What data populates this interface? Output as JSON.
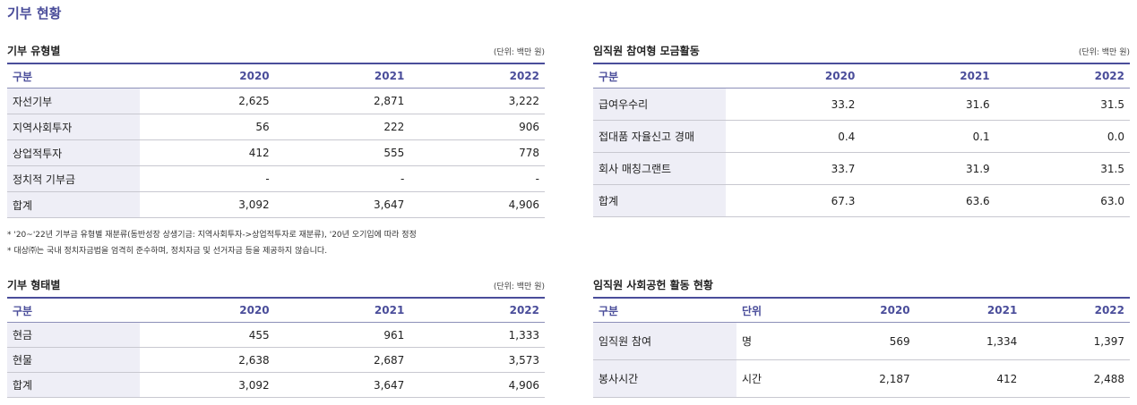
{
  "page_title": "기부 현황",
  "by_type": {
    "title": "기부 유형별",
    "unit": "(단위: 백만 원)",
    "headers": [
      "구분",
      "2020",
      "2021",
      "2022"
    ],
    "rows": [
      [
        "자선기부",
        "2,625",
        "2,871",
        "3,222"
      ],
      [
        "지역사회투자",
        "56",
        "222",
        "906"
      ],
      [
        "상업적투자",
        "412",
        "555",
        "778"
      ],
      [
        "정치적 기부금",
        "-",
        "-",
        "-"
      ],
      [
        "합계",
        "3,092",
        "3,647",
        "4,906"
      ]
    ]
  },
  "notes": [
    "* '20~'22년 기부금 유형별 재분류(동반성장 상생기금: 지역사회투자->상업적투자로 재분류), '20년 오기입에 따라 정정",
    "* 대상㈜는 국내 정치자금법을 엄격히 준수하며, 정치자금 및 선거자금 등을 제공하지 않습니다."
  ],
  "by_form": {
    "title": "기부 형태별",
    "unit": "(단위: 백만 원)",
    "headers": [
      "구분",
      "2020",
      "2021",
      "2022"
    ],
    "rows": [
      [
        "현금",
        "455",
        "961",
        "1,333"
      ],
      [
        "현물",
        "2,638",
        "2,687",
        "3,573"
      ],
      [
        "합계",
        "3,092",
        "3,647",
        "4,906"
      ]
    ]
  },
  "employee_fund": {
    "title": "임직원 참여형 모금활동",
    "unit": "(단위: 백만 원)",
    "headers": [
      "구분",
      "2020",
      "2021",
      "2022"
    ],
    "rows": [
      [
        "급여우수리",
        "33.2",
        "31.6",
        "31.5"
      ],
      [
        "접대품 자율신고 경매",
        "0.4",
        "0.1",
        "0.0"
      ],
      [
        "회사 매칭그랜트",
        "33.7",
        "31.9",
        "31.5"
      ],
      [
        "합계",
        "67.3",
        "63.6",
        "63.0"
      ]
    ]
  },
  "employee_volunteer": {
    "title": "임직원 사회공헌 활동 현황",
    "headers": [
      "구분",
      "단위",
      "2020",
      "2021",
      "2022"
    ],
    "rows": [
      [
        "임직원 참여",
        "명",
        "569",
        "1,334",
        "1,397"
      ],
      [
        "봉사시간",
        "시간",
        "2,187",
        "412",
        "2,488"
      ]
    ]
  }
}
